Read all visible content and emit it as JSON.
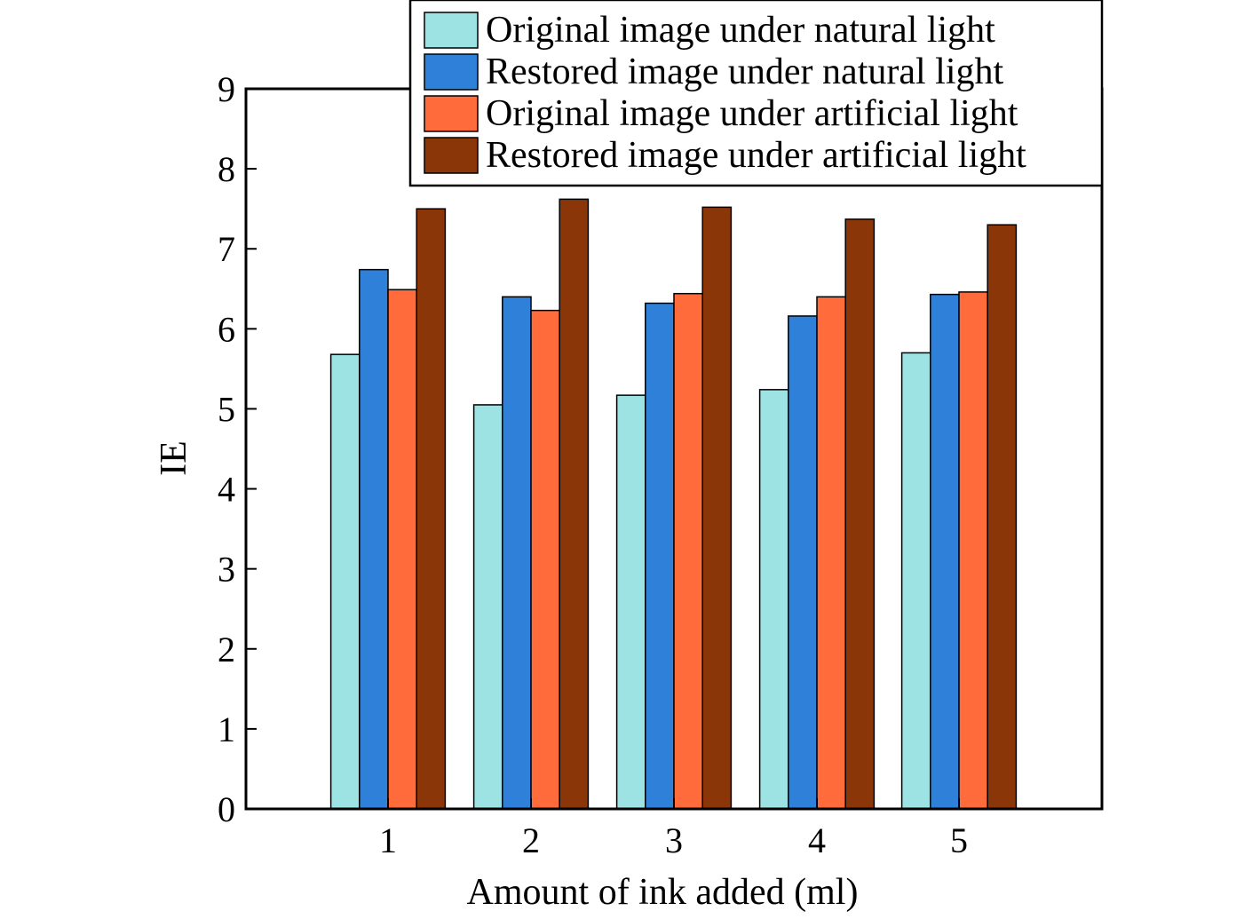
{
  "chart_data": {
    "type": "bar",
    "title": "",
    "xlabel": "Amount of ink added (ml)",
    "ylabel": "IE",
    "categories": [
      "1",
      "2",
      "3",
      "4",
      "5"
    ],
    "ylim": [
      0,
      9
    ],
    "yticks": [
      "0",
      "1",
      "2",
      "3",
      "4",
      "5",
      "6",
      "7",
      "8",
      "9"
    ],
    "grid": false,
    "legend_position": "top-right",
    "series": [
      {
        "name": "Original image under natural light",
        "color": "#9ee3e3",
        "values": [
          5.68,
          5.05,
          5.17,
          5.24,
          5.7
        ]
      },
      {
        "name": "Restored image under natural light",
        "color": "#2f80d8",
        "values": [
          6.74,
          6.4,
          6.32,
          6.16,
          6.43
        ]
      },
      {
        "name": "Original image under artificial light",
        "color": "#ff6b3a",
        "values": [
          6.49,
          6.23,
          6.44,
          6.4,
          6.46
        ]
      },
      {
        "name": "Restored image under artificial light",
        "color": "#8b3608",
        "values": [
          7.5,
          7.62,
          7.52,
          7.37,
          7.3
        ]
      }
    ]
  }
}
